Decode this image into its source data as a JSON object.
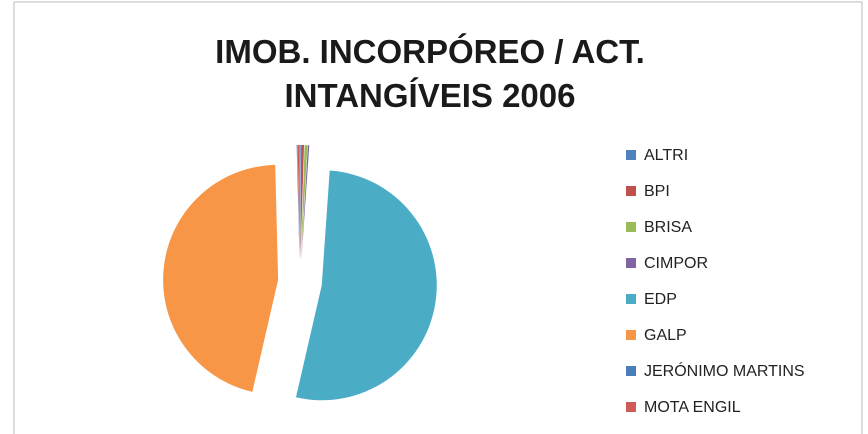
{
  "chart_data": {
    "type": "pie",
    "title": "IMOB. INCORPÓREO / ACT. INTANGÍVEIS 2006",
    "categories": [
      "ALTRI",
      "BPI",
      "BRISA",
      "CIMPOR",
      "EDP",
      "GALP",
      "JERÓNIMO MARTINS",
      "MOTA ENGIL"
    ],
    "values": [
      0.1,
      0.4,
      0.4,
      0.2,
      52.5,
      46,
      0.1,
      0.3
    ],
    "colors": [
      "#4f81bd",
      "#c0504d",
      "#9bbb59",
      "#8064a2",
      "#4bacc6",
      "#f79646",
      "#4a7ebb",
      "#d05a57"
    ],
    "legend": "right"
  }
}
